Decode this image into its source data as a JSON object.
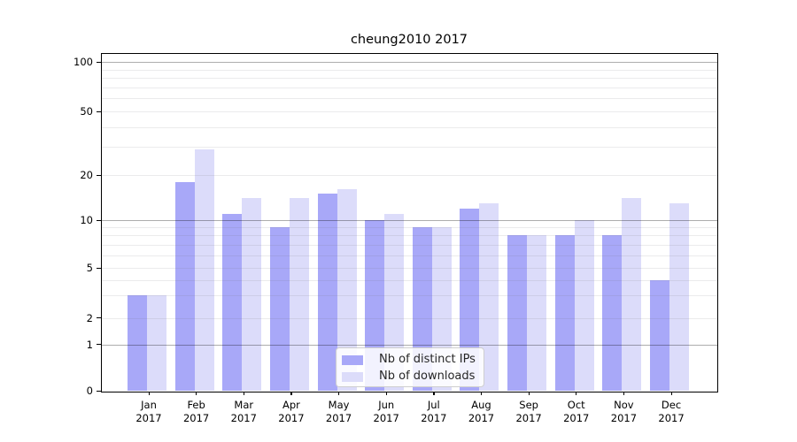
{
  "chart_data": {
    "type": "bar",
    "title": "cheung2010 2017",
    "categories": [
      "Jan",
      "Feb",
      "Mar",
      "Apr",
      "May",
      "Jun",
      "Jul",
      "Aug",
      "Sep",
      "Oct",
      "Nov",
      "Dec"
    ],
    "year_label": "2017",
    "series": [
      {
        "name": "Nb of distinct IPs",
        "color": "#a8a8f8",
        "values": [
          3,
          18,
          11,
          9,
          15,
          10,
          9,
          12,
          8,
          8,
          8,
          4
        ]
      },
      {
        "name": "Nb of downloads",
        "color": "#dcdcfa",
        "values": [
          3,
          29,
          14,
          14,
          16,
          11,
          9,
          13,
          8,
          10,
          14,
          13
        ]
      }
    ],
    "xlabel": "",
    "ylabel": "",
    "yscale": "symlog",
    "ylim": [
      0,
      110
    ],
    "y_ticks": [
      0,
      1,
      2,
      5,
      10,
      20,
      50,
      100
    ],
    "y_major_gridlines": [
      1,
      10,
      100
    ],
    "y_minor_gridlines": [
      2,
      3,
      4,
      5,
      6,
      7,
      8,
      9,
      20,
      30,
      40,
      50,
      60,
      70,
      80,
      90
    ],
    "grid": "on",
    "legend_position": "lower center inside",
    "colors": {
      "distinct_ips_bar": "#a8a8f8",
      "downloads_bar": "#dcdcfa",
      "major_grid": "#b3b3b3",
      "minor_grid": "#ececec",
      "axis": "#000000",
      "background": "#ffffff"
    }
  }
}
